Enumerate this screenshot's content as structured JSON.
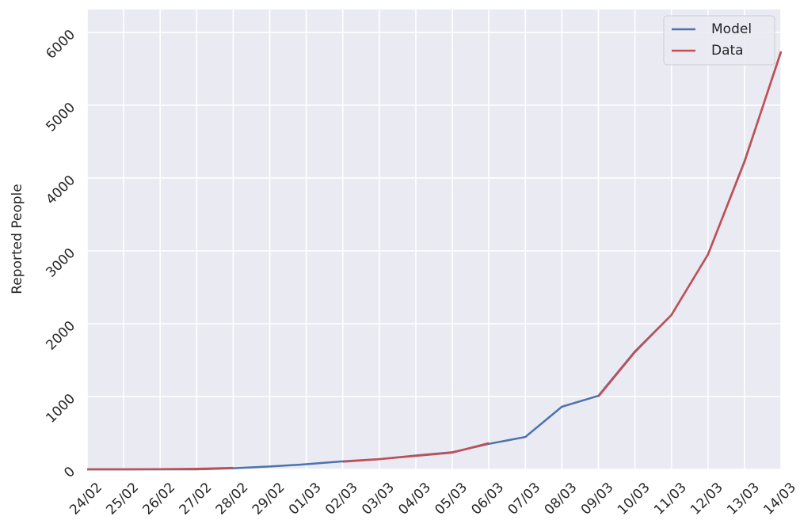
{
  "chart_data": {
    "type": "line",
    "y_label": "Reported People",
    "categories": [
      "24/02",
      "25/02",
      "26/02",
      "27/02",
      "28/02",
      "29/02",
      "01/03",
      "02/03",
      "03/03",
      "04/03",
      "05/03",
      "06/03",
      "07/03",
      "08/03",
      "09/03",
      "10/03",
      "11/03",
      "12/03",
      "13/03",
      "14/03"
    ],
    "series": [
      {
        "name": "Model",
        "color": "#4c72b0",
        "values": [
          0,
          0,
          0,
          0,
          15,
          40,
          70,
          110,
          140,
          190,
          235,
          350,
          445,
          860,
          1010,
          1620,
          2120,
          2950,
          4230,
          5730
        ]
      },
      {
        "name": "Data",
        "color": "#c44e52",
        "values": [
          0,
          0,
          3,
          8,
          20,
          null,
          null,
          105,
          140,
          185,
          230,
          360,
          null,
          null,
          1000,
          1610,
          2120,
          2950,
          4220,
          5740
        ]
      }
    ],
    "ylim": [
      0,
      6315
    ],
    "yticks": [
      0,
      1000,
      2000,
      3000,
      4000,
      5000,
      6000
    ],
    "grid": true,
    "legend": "upper right"
  }
}
